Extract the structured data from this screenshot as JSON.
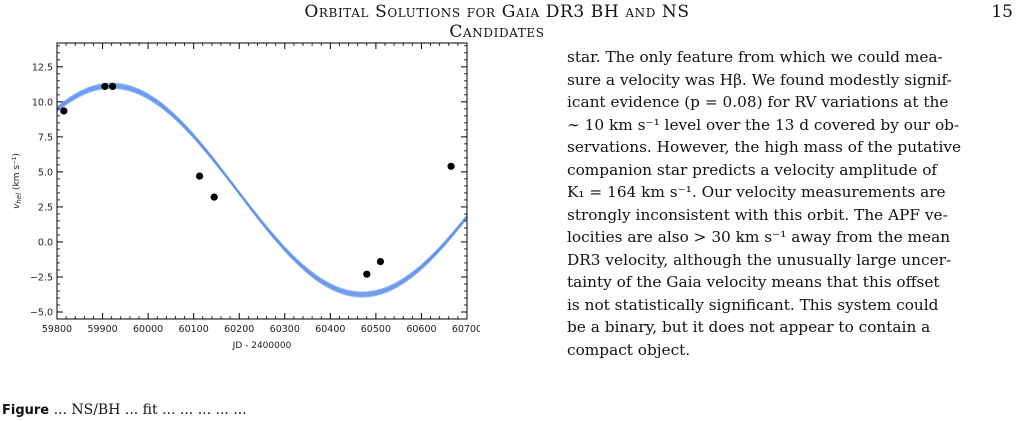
{
  "header": {
    "running_title": "Orbital Solutions for Gaia DR3 BH and NS Candidates",
    "page_number": "15"
  },
  "figure": {
    "caption_label": "Figure",
    "caption_text": " ... NS/BH ... fit ... ... ... ... ..."
  },
  "chart_data": {
    "type": "scatter",
    "title": "",
    "xlabel": "JD - 2400000",
    "ylabel": "v_hel (km s⁻¹)",
    "ylabel_main": "v",
    "ylabel_sub": "hel",
    "ylabel_units": " (km s⁻¹)",
    "xlim": [
      59800,
      60700
    ],
    "ylim": [
      -5.5,
      14.2
    ],
    "xticks": [
      59800,
      59900,
      60000,
      60100,
      60200,
      60300,
      60400,
      60500,
      60600,
      60700
    ],
    "xtick_labels": [
      "59800",
      "59900",
      "60000",
      "60100",
      "60200",
      "60300",
      "60400",
      "60500",
      "60600",
      "60700"
    ],
    "yticks": [
      -5.0,
      -2.5,
      0.0,
      2.5,
      5.0,
      7.5,
      10.0,
      12.5
    ],
    "ytick_labels": [
      "−5.0",
      "−2.5",
      "0.0",
      "2.5",
      "5.0",
      "7.5",
      "10.0",
      "12.5"
    ],
    "grid": false,
    "model_color": "#6495ed",
    "point_color": "#000000",
    "series": [
      {
        "kind": "points",
        "x": [
          59815,
          59905,
          59922,
          60113,
          60145,
          60480,
          60510,
          60665
        ],
        "y": [
          9.35,
          11.1,
          11.1,
          4.7,
          3.2,
          -2.3,
          -1.4,
          5.4
        ]
      }
    ],
    "model": {
      "kind": "sinusoid_band",
      "mean": 3.7,
      "amplitude": 7.45,
      "amplitude_spread": 0.3,
      "peak_jd": 59920,
      "period_days": 1100
    }
  },
  "body": {
    "lines": [
      "star. The only feature from which we could mea-",
      "sure a velocity was Hβ. We found modestly signif-",
      "icant evidence (p = 0.08) for RV variations at the",
      "∼ 10 km s⁻¹ level over the 13 d covered by our ob-",
      "servations. However, the high mass of the putative",
      "companion star predicts a velocity amplitude of",
      "K₁ = 164 km s⁻¹. Our velocity measurements are",
      "strongly inconsistent with this orbit. The APF ve-",
      "locities are also > 30 km s⁻¹ away from the mean",
      "DR3 velocity, although the unusually large uncer-",
      "tainty of the Gaia velocity means that this offset",
      "is not statistically significant. This system could",
      "be a binary, but it does not appear to contain a",
      "compact object."
    ]
  }
}
